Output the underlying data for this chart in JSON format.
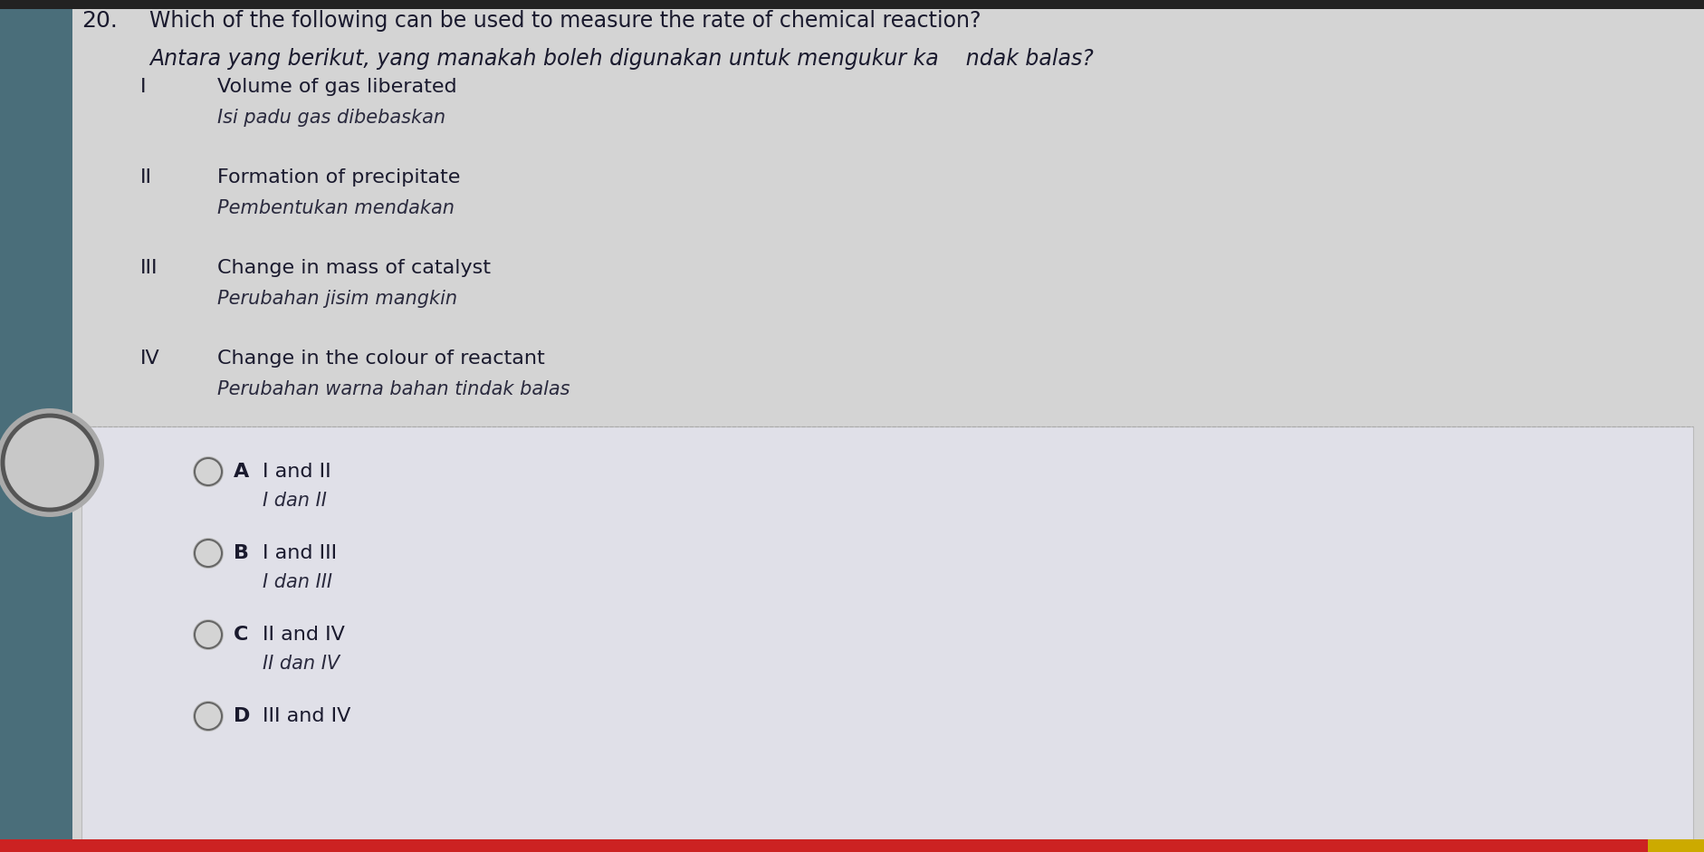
{
  "question_number": "20.",
  "question_line1": "Which of the following can be used to measure the rate of chemical reaction?",
  "question_line2": "Antara yang berikut, yang manakah boleh digunakan untuk mengukur ka    ndak balas?",
  "items": [
    {
      "roman": "I",
      "line1": "Volume of gas liberated",
      "line2": "Isi padu gas dibebaskan"
    },
    {
      "roman": "II",
      "line1": "Formation of precipitate",
      "line2": "Pembentukan mendakan"
    },
    {
      "roman": "III",
      "line1": "Change in mass of catalyst",
      "line2": "Perubahan jisim mangkin"
    },
    {
      "roman": "IV",
      "line1": "Change in the colour of reactant",
      "line2": "Perubahan warna bahan tindak balas"
    }
  ],
  "options": [
    {
      "letter": "A",
      "line1": "I and II",
      "line2": "I dan II"
    },
    {
      "letter": "B",
      "line1": "I and III",
      "line2": "I dan III"
    },
    {
      "letter": "C",
      "line1": "II and IV",
      "line2": "II dan IV"
    },
    {
      "letter": "D",
      "line1": "III and IV",
      "line2": ""
    }
  ],
  "bg_color": "#d4d4d4",
  "left_panel_color": "#4a6e7a",
  "circle_fill_color": "#c8c8c8",
  "circle_edge_color": "#555555",
  "answer_box_color": "#e0e0e8",
  "answer_box_edge": "#bbbbbb",
  "text_color": "#1a1a2e",
  "italic_color": "#2a2a3e",
  "option_circle_fill": "#d4d4d4",
  "option_circle_edge": "#666666",
  "top_bar_color": "#222222",
  "bottom_bar_color_left": "#cc2222",
  "bottom_bar_color_right": "#ccaa00",
  "bottom_bar_height": 14,
  "top_bar_height": 10
}
